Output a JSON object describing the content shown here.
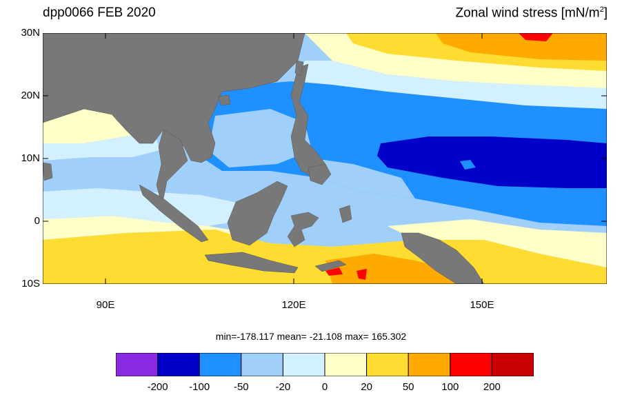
{
  "title_left": "dpp0066 FEB 2020",
  "title_right": "Zonal wind stress [mN/m",
  "title_right_sup": "2",
  "title_right_end": "]",
  "lat_labels": [
    "30N",
    "20N",
    "10N",
    "0",
    "10S"
  ],
  "lon_labels": [
    "90E",
    "120E",
    "150E"
  ],
  "stats": "min=-178.117  mean= -21.108  max= 165.302",
  "colorbar": {
    "labels": [
      "-200",
      "-100",
      "-50",
      "-20",
      "0",
      "20",
      "50",
      "100",
      "200"
    ],
    "colors": [
      "#8a2be2",
      "#0000c8",
      "#1e90ff",
      "#a0d0fa",
      "#d2f0ff",
      "#ffffc8",
      "#ffdc32",
      "#ffaa00",
      "#ff0000",
      "#c80000"
    ]
  },
  "colors": {
    "land": "#787878"
  }
}
